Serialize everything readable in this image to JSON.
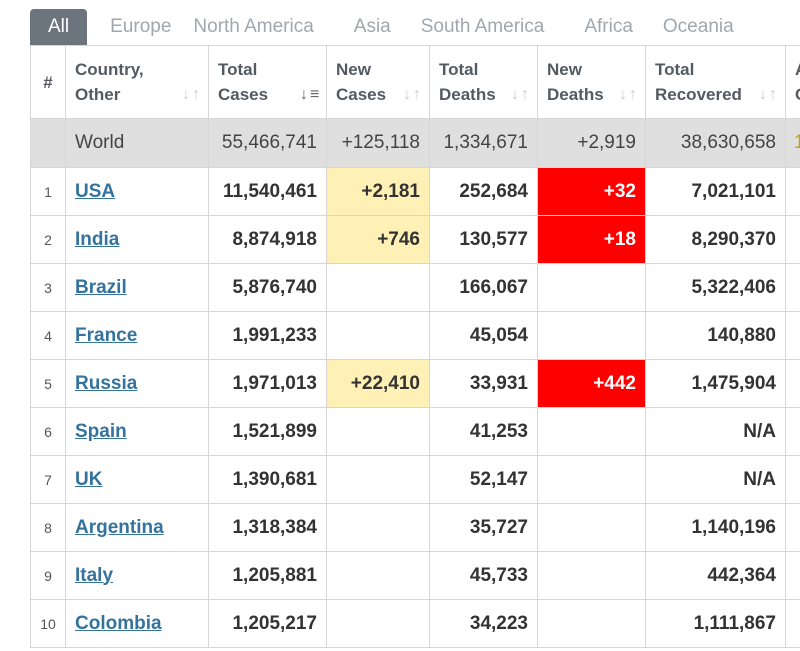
{
  "tabs": [
    {
      "label": "All",
      "active": true
    },
    {
      "label": "Europe"
    },
    {
      "label": "North America"
    },
    {
      "label": "Asia"
    },
    {
      "label": "South America"
    },
    {
      "label": "Africa"
    },
    {
      "label": "Oceania"
    }
  ],
  "table": {
    "headers": {
      "rank": "#",
      "country": "Country,\nOther",
      "total_cases": "Total\nCases",
      "new_cases": "New\nCases",
      "total_deaths": "Total\nDeaths",
      "new_deaths": "New\nDeaths",
      "total_recovered": "Total\nRecovered",
      "active_partial": "A\nC"
    },
    "world": {
      "country": "World",
      "total_cases": "55,466,741",
      "new_cases": "+125,118",
      "total_deaths": "1,334,671",
      "new_deaths": "+2,919",
      "total_recovered": "38,630,658",
      "extra": "1"
    },
    "rows": [
      {
        "rank": "1",
        "country": "USA",
        "total_cases": "11,540,461",
        "new_cases": "+2,181",
        "total_deaths": "252,684",
        "new_deaths": "+32",
        "total_recovered": "7,021,101"
      },
      {
        "rank": "2",
        "country": "India",
        "total_cases": "8,874,918",
        "new_cases": "+746",
        "total_deaths": "130,577",
        "new_deaths": "+18",
        "total_recovered": "8,290,370"
      },
      {
        "rank": "3",
        "country": "Brazil",
        "total_cases": "5,876,740",
        "new_cases": "",
        "total_deaths": "166,067",
        "new_deaths": "",
        "total_recovered": "5,322,406"
      },
      {
        "rank": "4",
        "country": "France",
        "total_cases": "1,991,233",
        "new_cases": "",
        "total_deaths": "45,054",
        "new_deaths": "",
        "total_recovered": "140,880"
      },
      {
        "rank": "5",
        "country": "Russia",
        "total_cases": "1,971,013",
        "new_cases": "+22,410",
        "total_deaths": "33,931",
        "new_deaths": "+442",
        "total_recovered": "1,475,904"
      },
      {
        "rank": "6",
        "country": "Spain",
        "total_cases": "1,521,899",
        "new_cases": "",
        "total_deaths": "41,253",
        "new_deaths": "",
        "total_recovered": "N/A"
      },
      {
        "rank": "7",
        "country": "UK",
        "total_cases": "1,390,681",
        "new_cases": "",
        "total_deaths": "52,147",
        "new_deaths": "",
        "total_recovered": "N/A"
      },
      {
        "rank": "8",
        "country": "Argentina",
        "total_cases": "1,318,384",
        "new_cases": "",
        "total_deaths": "35,727",
        "new_deaths": "",
        "total_recovered": "1,140,196"
      },
      {
        "rank": "9",
        "country": "Italy",
        "total_cases": "1,205,881",
        "new_cases": "",
        "total_deaths": "45,733",
        "new_deaths": "",
        "total_recovered": "442,364"
      },
      {
        "rank": "10",
        "country": "Colombia",
        "total_cases": "1,205,217",
        "new_cases": "",
        "total_deaths": "34,223",
        "new_deaths": "",
        "total_recovered": "1,111,867"
      }
    ]
  },
  "icons": {
    "sort": "sort-arrows-icon",
    "sort_active": "sort-desc-icon"
  },
  "colors": {
    "tab_active_bg": "#6c757d",
    "new_cases_highlight": "#fff0b5",
    "new_deaths_highlight": "#ff0000",
    "link": "#33739e",
    "world_row_bg": "#dfdfdf"
  }
}
